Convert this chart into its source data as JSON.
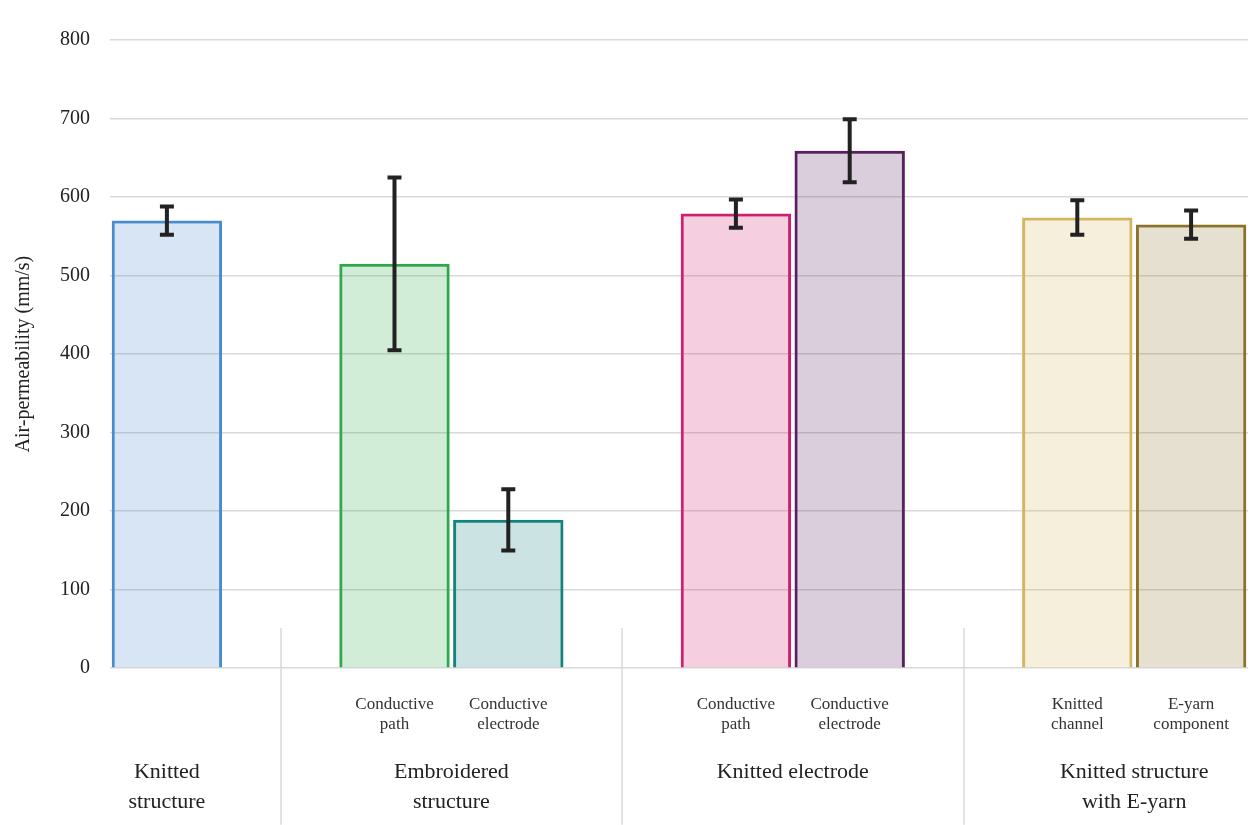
{
  "chart_data": {
    "type": "bar",
    "ylabel": "Air-permeability (mm/s)",
    "categories": [
      null,
      null,
      "Conductive path",
      "Conductive electrode",
      null,
      "Conductive path",
      "Conductive electrode",
      null,
      "Knitted channel",
      "E-yarn component"
    ],
    "values": [
      570,
      null,
      515,
      189,
      null,
      579,
      659,
      null,
      574,
      565
    ],
    "errors": [
      18,
      null,
      110,
      39,
      null,
      18,
      40,
      null,
      22,
      18
    ],
    "colors": [
      "#4a8ad0",
      "#ffffff",
      "#2ea84a",
      "#13837e",
      "#ffffff",
      "#d01f6c",
      "#5a1f5e",
      "#ffffff",
      "#d4b45e",
      "#8a7228"
    ],
    "ylim": [
      0,
      800
    ],
    "yticks": [
      0,
      100,
      200,
      300,
      400,
      500,
      600,
      700,
      800
    ],
    "grid": "y",
    "legend": false,
    "annotations": [
      "Knitted structure",
      "Embroidered structure",
      "Knitted electrode",
      "Knitted structure with E-yarn"
    ]
  }
}
